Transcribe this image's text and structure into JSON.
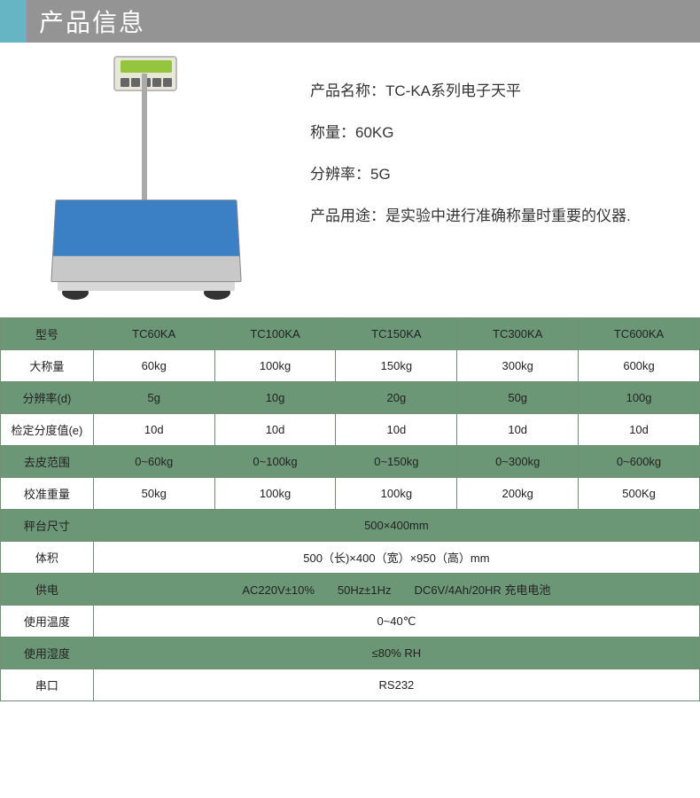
{
  "header": {
    "title": "产品信息",
    "accent_color": "#66b5c4",
    "bg_color": "#949494"
  },
  "product": {
    "name_label": "产品名称：",
    "name_value": "TC-KA系列电子天平",
    "weight_label": "称量：",
    "weight_value": "60KG",
    "resolution_label": "分辨率：",
    "resolution_value": "5G",
    "usage_label": "产品用途：",
    "usage_value": "是实验中进行准确称量时重要的仪器."
  },
  "table": {
    "colors": {
      "green_bg": "#6c9777",
      "white_bg": "#ffffff",
      "border": "#709077"
    },
    "rows": [
      {
        "type": "multi",
        "green": true,
        "label": "型号",
        "cells": [
          "TC60KA",
          "TC100KA",
          "TC150KA",
          "TC300KA",
          "TC600KA"
        ]
      },
      {
        "type": "multi",
        "green": false,
        "label": "大称量",
        "cells": [
          "60kg",
          "100kg",
          "150kg",
          "300kg",
          "600kg"
        ]
      },
      {
        "type": "multi",
        "green": true,
        "label": "分辨率(d)",
        "cells": [
          "5g",
          "10g",
          "20g",
          "50g",
          "100g"
        ]
      },
      {
        "type": "multi",
        "green": false,
        "label": "检定分度值(e)",
        "cells": [
          "10d",
          "10d",
          "10d",
          "10d",
          "10d"
        ]
      },
      {
        "type": "multi",
        "green": true,
        "label": "去皮范围",
        "cells": [
          "0~60kg",
          "0~100kg",
          "0~150kg",
          "0~300kg",
          "0~600kg"
        ]
      },
      {
        "type": "multi",
        "green": false,
        "label": "校准重量",
        "cells": [
          "50kg",
          "100kg",
          "100kg",
          "200kg",
          "500Kg"
        ]
      },
      {
        "type": "span",
        "green": true,
        "label": "秤台尺寸",
        "value": "500×400mm"
      },
      {
        "type": "span",
        "green": false,
        "label": "体积",
        "value": "500（长)×400（宽）×950（高）mm"
      },
      {
        "type": "span",
        "green": true,
        "label": "供电",
        "value": "AC220V±10%  50Hz±1Hz  DC6V/4Ah/20HR 充电电池"
      },
      {
        "type": "span",
        "green": false,
        "label": "使用温度",
        "value": "0~40℃"
      },
      {
        "type": "span",
        "green": true,
        "label": "使用湿度",
        "value": "≤80% RH"
      },
      {
        "type": "span",
        "green": false,
        "label": "串口",
        "value": "RS232"
      }
    ]
  }
}
